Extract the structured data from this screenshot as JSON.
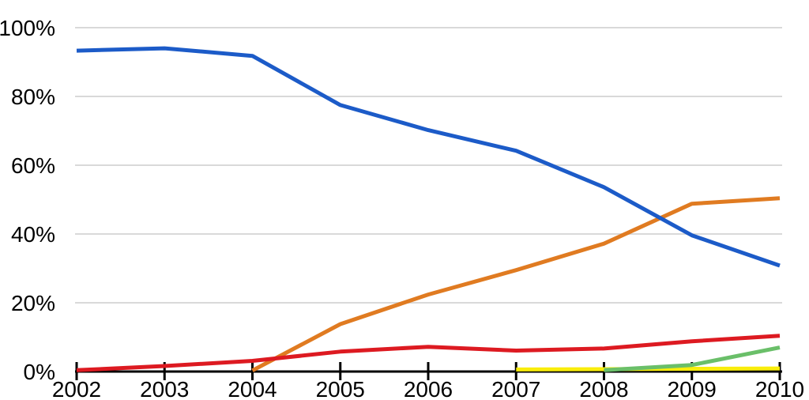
{
  "page": {
    "background_color": "#ffffff"
  },
  "chart_data": {
    "type": "line",
    "title": "",
    "xlabel": "",
    "ylabel": "",
    "xlim": [
      2002,
      2010
    ],
    "ylim": [
      0,
      100
    ],
    "x_ticks": [
      2002,
      2003,
      2004,
      2005,
      2006,
      2007,
      2008,
      2009,
      2010
    ],
    "x_tick_labels": [
      "2002",
      "2003",
      "2004",
      "2005",
      "2006",
      "2007",
      "2008",
      "2009",
      "2010"
    ],
    "y_ticks": [
      0,
      20,
      40,
      60,
      80,
      100
    ],
    "y_tick_labels": [
      "0%",
      "20%",
      "40%",
      "60%",
      "80%",
      "100%"
    ],
    "grid": "horizontal-only",
    "gridline_color": "#d9d9d9",
    "axis_color": "#000000",
    "legend": "none",
    "series": [
      {
        "name": "yellow-line",
        "color": "#f9ed0b",
        "points": [
          [
            2007,
            0.6
          ],
          [
            2008,
            0.7
          ],
          [
            2009,
            0.8
          ],
          [
            2010,
            0.9
          ]
        ]
      },
      {
        "name": "orange-line",
        "color": "#e07b21",
        "points": [
          [
            2004,
            0.3
          ],
          [
            2005,
            13.8
          ],
          [
            2006,
            22.4
          ],
          [
            2007,
            29.5
          ],
          [
            2008,
            37.2
          ],
          [
            2009,
            48.8
          ],
          [
            2010,
            50.4
          ]
        ]
      },
      {
        "name": "green-line",
        "color": "#6abf69",
        "points": [
          [
            2008,
            0.4
          ],
          [
            2009,
            1.9
          ],
          [
            2010,
            7.0
          ]
        ]
      },
      {
        "name": "red-line",
        "color": "#dd1a21",
        "points": [
          [
            2002,
            0.4
          ],
          [
            2003,
            1.6
          ],
          [
            2004,
            3.1
          ],
          [
            2005,
            5.8
          ],
          [
            2006,
            7.2
          ],
          [
            2007,
            6.1
          ],
          [
            2008,
            6.7
          ],
          [
            2009,
            8.8
          ],
          [
            2010,
            10.4
          ]
        ]
      },
      {
        "name": "blue-line",
        "color": "#1c5bc8",
        "points": [
          [
            2002,
            93.3
          ],
          [
            2003,
            94.0
          ],
          [
            2004,
            91.8
          ],
          [
            2005,
            77.5
          ],
          [
            2006,
            70.2
          ],
          [
            2007,
            64.2
          ],
          [
            2008,
            53.6
          ],
          [
            2009,
            39.6
          ],
          [
            2010,
            30.8
          ]
        ]
      }
    ]
  }
}
